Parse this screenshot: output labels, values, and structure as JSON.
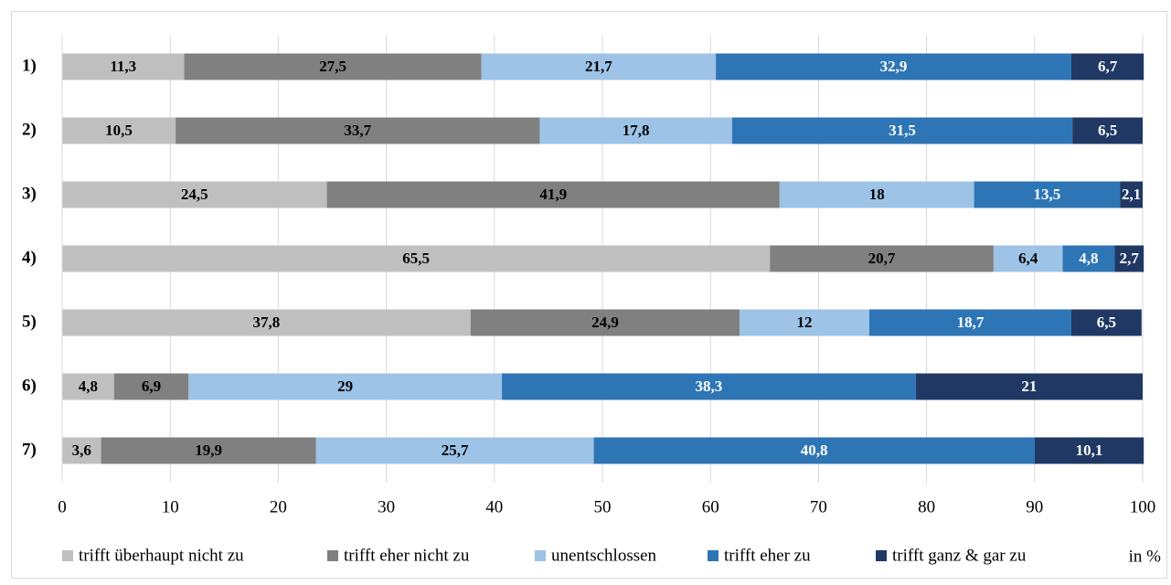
{
  "chart_data": {
    "type": "stacked_barh",
    "categories": [
      "1)",
      "2)",
      "3)",
      "4)",
      "5)",
      "6)",
      "7)"
    ],
    "series": [
      {
        "name": "trifft überhaupt nicht zu",
        "color": "#bfbfbf",
        "text_color": "#000000",
        "values": [
          11.3,
          10.5,
          24.5,
          65.5,
          37.8,
          4.8,
          3.6
        ],
        "value_labels": [
          "11,3",
          "10,5",
          "24,5",
          "65,5",
          "37,8",
          "4,8",
          "3,6"
        ]
      },
      {
        "name": "trifft eher nicht zu",
        "color": "#808080",
        "text_color": "#000000",
        "values": [
          27.5,
          33.7,
          41.9,
          20.7,
          24.9,
          6.9,
          19.9
        ],
        "value_labels": [
          "27,5",
          "33,7",
          "41,9",
          "20,7",
          "24,9",
          "6,9",
          "19,9"
        ]
      },
      {
        "name": "unentschlossen",
        "color": "#9dc3e6",
        "text_color": "#000000",
        "values": [
          21.7,
          17.8,
          18,
          6.4,
          12,
          29,
          25.7
        ],
        "value_labels": [
          "21,7",
          "17,8",
          "18",
          "6,4",
          "12",
          "29",
          "25,7"
        ]
      },
      {
        "name": "trifft eher zu",
        "color": "#2e75b6",
        "text_color": "#ffffff",
        "values": [
          32.9,
          31.5,
          13.5,
          4.8,
          18.7,
          38.3,
          40.8
        ],
        "value_labels": [
          "32,9",
          "31,5",
          "13,5",
          "4,8",
          "18,7",
          "38,3",
          "40,8"
        ]
      },
      {
        "name": "trifft ganz & gar zu",
        "color": "#203864",
        "text_color": "#ffffff",
        "values": [
          6.7,
          6.5,
          2.1,
          2.7,
          6.5,
          21,
          10.1
        ],
        "value_labels": [
          "6,7",
          "6,5",
          "2,1",
          "2,7",
          "6,5",
          "21",
          "10,1"
        ]
      }
    ],
    "unit_label": "in %",
    "xlim": [
      0,
      100
    ],
    "xticks": [
      0,
      10,
      20,
      30,
      40,
      50,
      60,
      70,
      80,
      90,
      100
    ],
    "grid": true
  }
}
